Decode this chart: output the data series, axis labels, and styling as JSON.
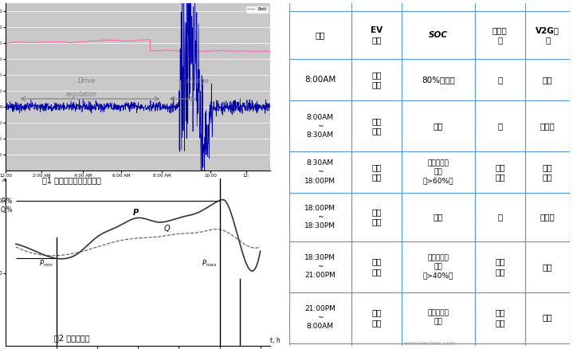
{
  "fig1_title": "图1 电动汽车并网例子分析",
  "fig2_title": "图2 日负荷曲线",
  "table_headers": [
    "时间",
    "EV\n状态",
    "SOC",
    "电网负\n荷",
    "V2G状\n态"
  ],
  "table_rows": [
    [
      "8:00AM",
      "准备\n上班",
      "80%及以上",
      "中",
      "充电"
    ],
    [
      "8:00AM\n~\n8:30AM",
      "上班\n用车",
      "下降",
      "中",
      "未接入"
    ],
    [
      "8:30AM\n~\n18:00PM",
      "公司\n停驶",
      "代理商智能\n调度\n（>60%）",
      "午间\n峰荷",
      "先充\n后放"
    ],
    [
      "18:00PM\n~\n18:30PM",
      "下班\n用车",
      "下降",
      "中",
      "未接入"
    ],
    [
      "18:30PM\n~\n21:00PM",
      "小区\n停驶",
      "代理商智能\n调度\n（>40%）",
      "晚间\n峰荷",
      "放电"
    ],
    [
      "21:00PM\n~\n8:00AM",
      "小区\n停驶",
      "代理商智能\n调度",
      "夜间\n谷荷",
      "充电"
    ]
  ],
  "watermark": "www.elecfans.com",
  "bg_color": "#ffffff"
}
